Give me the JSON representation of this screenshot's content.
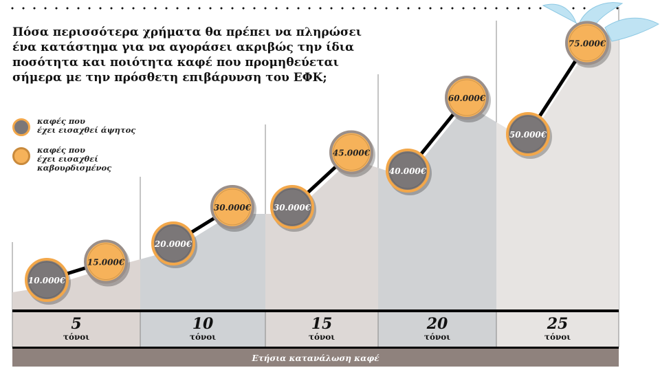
{
  "title": "Πόσα περισσότερα χρήματα θα πρέπει να πληρώσει ένα κατάστημα για να αγοράσει ακριβώς την ίδια ποσότητα και ποιότητα καφέ που προμηθεύεται σήμερα με την πρόσθετη επιβάρυνση του ΕΦΚ;",
  "title_lines": [
    "Πόσα περισσότερα χρήματα θα πρέπει να πληρώσει",
    "ένα κατάστημα για να αγοράσει ακριβώς την ίδια",
    "ποσότητα και ποιότητα καφέ που προμηθεύεται",
    "σήμερα με την πρόσθετη επιβάρυνση του ΕΦΚ;"
  ],
  "legend": [
    {
      "label_lines": [
        "καφές που",
        "έχει εισαχθεί άψητος"
      ],
      "color": "#7b7778"
    },
    {
      "label_lines": [
        "καφές που",
        "έχει εισαχθεί",
        "καβουρδισμένος"
      ],
      "color": "#f6b25a"
    }
  ],
  "chart_data": {
    "type": "line",
    "xlabel": "Ετήσια κατανάλωση καφέ",
    "categories": [
      "5",
      "10",
      "15",
      "20",
      "25"
    ],
    "category_unit": "τόνοι",
    "series": [
      {
        "name": "καφές που έχει εισαχθεί άψητος",
        "color": "#7b7778",
        "values": [
          10000,
          20000,
          30000,
          40000,
          50000
        ]
      },
      {
        "name": "καφές που έχει εισαχθεί καβουρδισμένος",
        "color": "#f6b25a",
        "values": [
          15000,
          30000,
          45000,
          60000,
          75000
        ]
      }
    ],
    "value_labels": {
      "unroasted": [
        "10.000€",
        "20.000€",
        "30.000€",
        "40.000€",
        "50.000€"
      ],
      "roasted": [
        "15.000€",
        "30.000€",
        "45.000€",
        "60.000€",
        "75.000€"
      ]
    },
    "column_colors": [
      "#dcd5d2",
      "#cfd2d5",
      "#ddd8d6",
      "#d0d2d4",
      "#e7e4e2"
    ],
    "axis_bar_color": "#8f827d"
  }
}
